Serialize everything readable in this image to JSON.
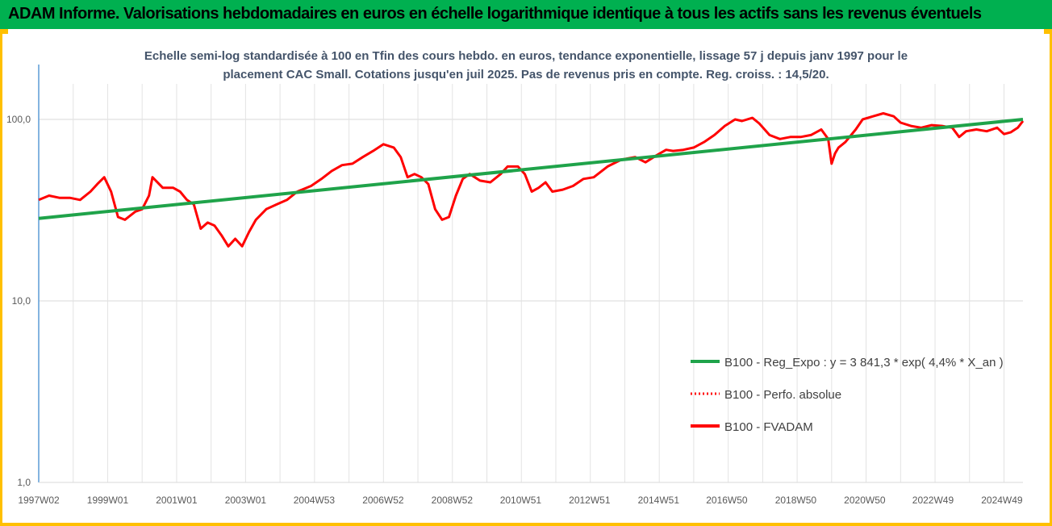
{
  "header": {
    "title": "ADAM Informe. Valorisations hebdomadaires en euros en échelle logarithmique identique à tous les actifs sans les revenus éventuels"
  },
  "colors": {
    "banner": "#00b050",
    "accent": "#ffc000",
    "trend": "#1fa34a",
    "series": "#ff0000"
  },
  "chart_data": {
    "type": "line",
    "title_lines": [
      "Echelle semi-log standardisée à 100 en Tfin des cours hebdo. en euros, tendance exponentielle, lissage 57 j depuis janv 1997 pour le",
      "placement CAC Small. Cotations jusqu'en juil 2025. Pas de revenus pris en compte. Reg. croiss. : 14,5/20."
    ],
    "y_scale": "log",
    "ylim": [
      1,
      200
    ],
    "y_ticks": [
      {
        "value": 100,
        "label": "100,0"
      },
      {
        "value": 10,
        "label": "10,0"
      },
      {
        "value": 1,
        "label": "1,0"
      }
    ],
    "xlim": [
      1997.0,
      2025.55
    ],
    "x_ticks": [
      {
        "x": 1997.0,
        "label": "1997W02"
      },
      {
        "x": 1999.0,
        "label": "1999W01"
      },
      {
        "x": 2001.0,
        "label": "2001W01"
      },
      {
        "x": 2003.0,
        "label": "2003W01"
      },
      {
        "x": 2004.99,
        "label": "2004W53"
      },
      {
        "x": 2006.99,
        "label": "2006W52"
      },
      {
        "x": 2008.99,
        "label": "2008W52"
      },
      {
        "x": 2010.98,
        "label": "2010W51"
      },
      {
        "x": 2012.98,
        "label": "2012W51"
      },
      {
        "x": 2014.98,
        "label": "2014W51"
      },
      {
        "x": 2016.96,
        "label": "2016W50"
      },
      {
        "x": 2018.96,
        "label": "2018W50"
      },
      {
        "x": 2020.96,
        "label": "2020W50"
      },
      {
        "x": 2022.94,
        "label": "2022W49"
      },
      {
        "x": 2024.94,
        "label": "2024W49"
      }
    ],
    "grid": "vertical",
    "legend_position": "bottom-right",
    "series": [
      {
        "name": "B100 - Reg_Expo : y = 3 841,3 * exp( 4,4% *  X_an )",
        "color": "#1fa34a",
        "style": "solid",
        "x": [
          1997.0,
          2025.55
        ],
        "y": [
          28.5,
          100.0
        ]
      },
      {
        "name": "B100 - Perfo. absolue",
        "color": "#ff0000",
        "style": "dotted",
        "x": [],
        "y": []
      },
      {
        "name": "B100 - FVADAM",
        "color": "#ff0000",
        "style": "solid",
        "x": [
          1997.0,
          1997.3,
          1997.6,
          1997.9,
          1998.2,
          1998.5,
          1998.7,
          1998.9,
          1999.1,
          1999.3,
          1999.5,
          1999.8,
          2000.0,
          2000.2,
          2000.3,
          2000.6,
          2000.9,
          2001.1,
          2001.3,
          2001.5,
          2001.7,
          2001.9,
          2002.1,
          2002.3,
          2002.5,
          2002.7,
          2002.9,
          2003.1,
          2003.3,
          2003.6,
          2003.9,
          2004.2,
          2004.5,
          2004.9,
          2005.2,
          2005.5,
          2005.8,
          2006.1,
          2006.4,
          2006.7,
          2007.0,
          2007.3,
          2007.5,
          2007.7,
          2007.9,
          2008.1,
          2008.3,
          2008.5,
          2008.7,
          2008.9,
          2009.1,
          2009.3,
          2009.5,
          2009.8,
          2010.1,
          2010.4,
          2010.6,
          2010.9,
          2011.1,
          2011.3,
          2011.5,
          2011.7,
          2011.9,
          2012.2,
          2012.5,
          2012.8,
          2013.1,
          2013.5,
          2013.9,
          2014.3,
          2014.6,
          2014.9,
          2015.2,
          2015.4,
          2015.7,
          2016.0,
          2016.3,
          2016.6,
          2016.9,
          2017.2,
          2017.4,
          2017.7,
          2017.9,
          2018.2,
          2018.5,
          2018.8,
          2019.1,
          2019.4,
          2019.7,
          2019.9,
          2020.0,
          2020.1,
          2020.2,
          2020.4,
          2020.7,
          2020.9,
          2021.2,
          2021.5,
          2021.8,
          2022.0,
          2022.3,
          2022.6,
          2022.9,
          2023.2,
          2023.5,
          2023.7,
          2023.9,
          2024.2,
          2024.5,
          2024.8,
          2025.0,
          2025.2,
          2025.4,
          2025.55
        ],
        "y": [
          36,
          38,
          37,
          37,
          36,
          40,
          44,
          48,
          40,
          29,
          28,
          31,
          32,
          38,
          48,
          42,
          42,
          40,
          36,
          34,
          25,
          27,
          26,
          23,
          20,
          22,
          20,
          24,
          28,
          32,
          34,
          36,
          40,
          43,
          47,
          52,
          56,
          57,
          62,
          67,
          73,
          70,
          62,
          48,
          50,
          48,
          44,
          32,
          28,
          29,
          38,
          47,
          50,
          46,
          45,
          50,
          55,
          55,
          50,
          40,
          42,
          45,
          40,
          41,
          43,
          47,
          48,
          55,
          60,
          62,
          58,
          63,
          68,
          67,
          68,
          70,
          75,
          82,
          92,
          100,
          98,
          102,
          95,
          82,
          78,
          80,
          80,
          82,
          88,
          78,
          57,
          65,
          70,
          75,
          88,
          100,
          104,
          108,
          104,
          96,
          92,
          90,
          93,
          92,
          90,
          80,
          86,
          88,
          86,
          90,
          83,
          85,
          90,
          98
        ]
      }
    ]
  }
}
